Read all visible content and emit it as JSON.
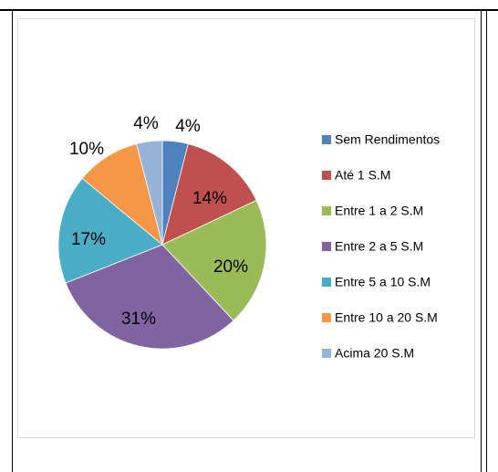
{
  "chart_data": {
    "type": "pie",
    "title": "",
    "categories": [
      "Sem Rendimentos",
      "Até 1 S.M",
      "Entre 1 a 2 S.M",
      "Entre 2 a 5 S.M",
      "Entre 5 a 10 S.M",
      "Entre 10 a 20 S.M",
      "Acima 20 S.M"
    ],
    "values": [
      4,
      14,
      20,
      31,
      17,
      10,
      4
    ],
    "labels": [
      "4%",
      "14%",
      "20%",
      "31%",
      "17%",
      "10%",
      "4%"
    ],
    "colors": [
      "#4f81bd",
      "#c0504d",
      "#9bbb59",
      "#8064a2",
      "#4bacc6",
      "#f79646",
      "#95b3d7"
    ],
    "legend_position": "right"
  }
}
